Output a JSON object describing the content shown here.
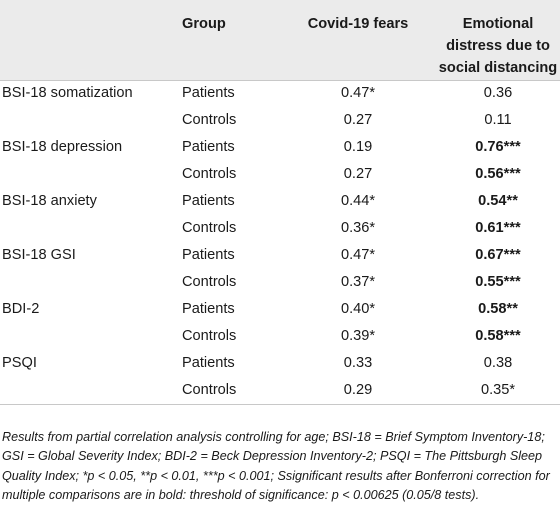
{
  "header": {
    "measure": "",
    "group": "Group",
    "covid": "Covid-19 fears",
    "emotional_line1": "Emotional",
    "emotional_line2": "distress due to",
    "emotional_line3": "social distancing"
  },
  "rows": [
    {
      "measure": "BSI-18 somatization",
      "group": "Patients",
      "covid": "0.47*",
      "covid_bold": false,
      "emot": "0.36",
      "emot_bold": false
    },
    {
      "measure": "",
      "group": "Controls",
      "covid": "0.27",
      "covid_bold": false,
      "emot": "0.11",
      "emot_bold": false
    },
    {
      "measure": "BSI-18 depression",
      "group": "Patients",
      "covid": "0.19",
      "covid_bold": false,
      "emot": "0.76***",
      "emot_bold": true
    },
    {
      "measure": "",
      "group": "Controls",
      "covid": "0.27",
      "covid_bold": false,
      "emot": "0.56***",
      "emot_bold": true
    },
    {
      "measure": "BSI-18 anxiety",
      "group": "Patients",
      "covid": "0.44*",
      "covid_bold": false,
      "emot": "0.54**",
      "emot_bold": true
    },
    {
      "measure": "",
      "group": "Controls",
      "covid": "0.36*",
      "covid_bold": false,
      "emot": "0.61***",
      "emot_bold": true
    },
    {
      "measure": "BSI-18 GSI",
      "group": "Patients",
      "covid": "0.47*",
      "covid_bold": false,
      "emot": "0.67***",
      "emot_bold": true
    },
    {
      "measure": "",
      "group": "Controls",
      "covid": "0.37*",
      "covid_bold": false,
      "emot": "0.55***",
      "emot_bold": true
    },
    {
      "measure": "BDI-2",
      "group": "Patients",
      "covid": "0.40*",
      "covid_bold": false,
      "emot": "0.58**",
      "emot_bold": true
    },
    {
      "measure": "",
      "group": "Controls",
      "covid": "0.39*",
      "covid_bold": false,
      "emot": "0.58***",
      "emot_bold": true
    },
    {
      "measure": "PSQI",
      "group": "Patients",
      "covid": "0.33",
      "covid_bold": false,
      "emot": "0.38",
      "emot_bold": false
    },
    {
      "measure": "",
      "group": "Controls",
      "covid": "0.29",
      "covid_bold": false,
      "emot": "0.35*",
      "emot_bold": false
    }
  ],
  "footnote": "Results from partial correlation analysis controlling for age; BSI-18 = Brief Symptom Inventory-18; GSI = Global Severity Index; BDI-2 = Beck Depression Inventory-2; PSQI = The Pittsburgh Sleep Quality Index; *p < 0.05, **p < 0.01, ***p < 0.001; Ssignificant results after Bonferroni correction for multiple comparisons are in bold: threshold of significance: p < 0.00625 (0.05/8 tests).",
  "colors": {
    "header_bg": "#ebebeb",
    "rule": "#c8c8c8",
    "text": "#1a1a1a"
  }
}
